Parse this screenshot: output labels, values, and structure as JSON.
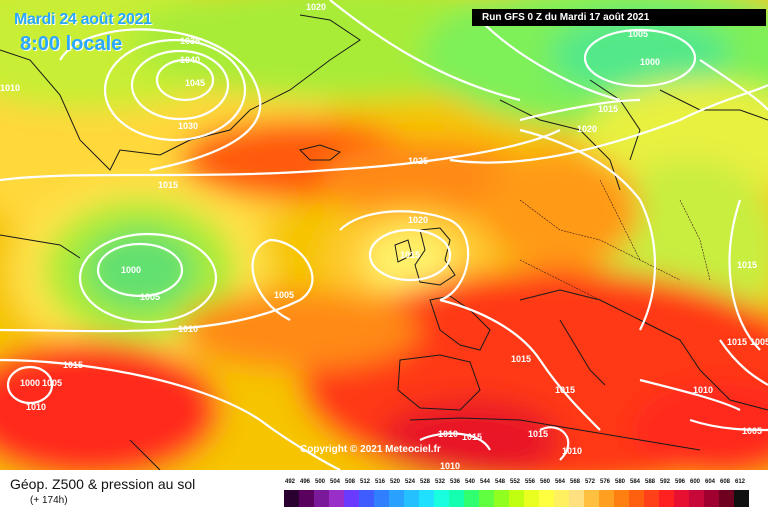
{
  "header": {
    "date": "Mardi 24 août 2021",
    "time": "8:00 locale",
    "run": "Run GFS 0 Z du Mardi 17 août 2021"
  },
  "copyright": "Copyright © 2021 Meteociel.fr",
  "caption": {
    "title": "Géop. Z500 & pression au sol",
    "subtitle": "(+ 174h)"
  },
  "scale": {
    "ticks": [
      "492",
      "496",
      "500",
      "504",
      "508",
      "512",
      "516",
      "520",
      "524",
      "528",
      "532",
      "536",
      "540",
      "544",
      "548",
      "552",
      "556",
      "560",
      "564",
      "568",
      "572",
      "576",
      "580",
      "584",
      "588",
      "592",
      "596",
      "600",
      "604",
      "608",
      "612"
    ],
    "colors": [
      "#2a0030",
      "#5a005e",
      "#7a1a9a",
      "#9a2ec8",
      "#6a3aff",
      "#3e5cff",
      "#2f7fff",
      "#2aa0ff",
      "#25c0ff",
      "#20e0ff",
      "#18ffe0",
      "#14ffb0",
      "#30ff70",
      "#60ff40",
      "#90ff20",
      "#c0ff10",
      "#e8ff20",
      "#ffff40",
      "#fff060",
      "#ffe080",
      "#ffc040",
      "#ffa020",
      "#ff8010",
      "#ff6010",
      "#ff4018",
      "#ff2020",
      "#e81030",
      "#c80838",
      "#a00030",
      "#700020",
      "#101010"
    ]
  },
  "pressure_labels": [
    "1020",
    "1010",
    "1035",
    "1040",
    "1045",
    "1030",
    "1015",
    "1025",
    "1020",
    "1015",
    "1000",
    "1005",
    "1005",
    "1010",
    "1015",
    "1000",
    "1005",
    "1010",
    "1005",
    "1000",
    "1015",
    "1020",
    "1015",
    "1015",
    "1005",
    "1015",
    "1015",
    "1010",
    "1010",
    "1015",
    "1015",
    "1010",
    "1010",
    "1005"
  ]
}
